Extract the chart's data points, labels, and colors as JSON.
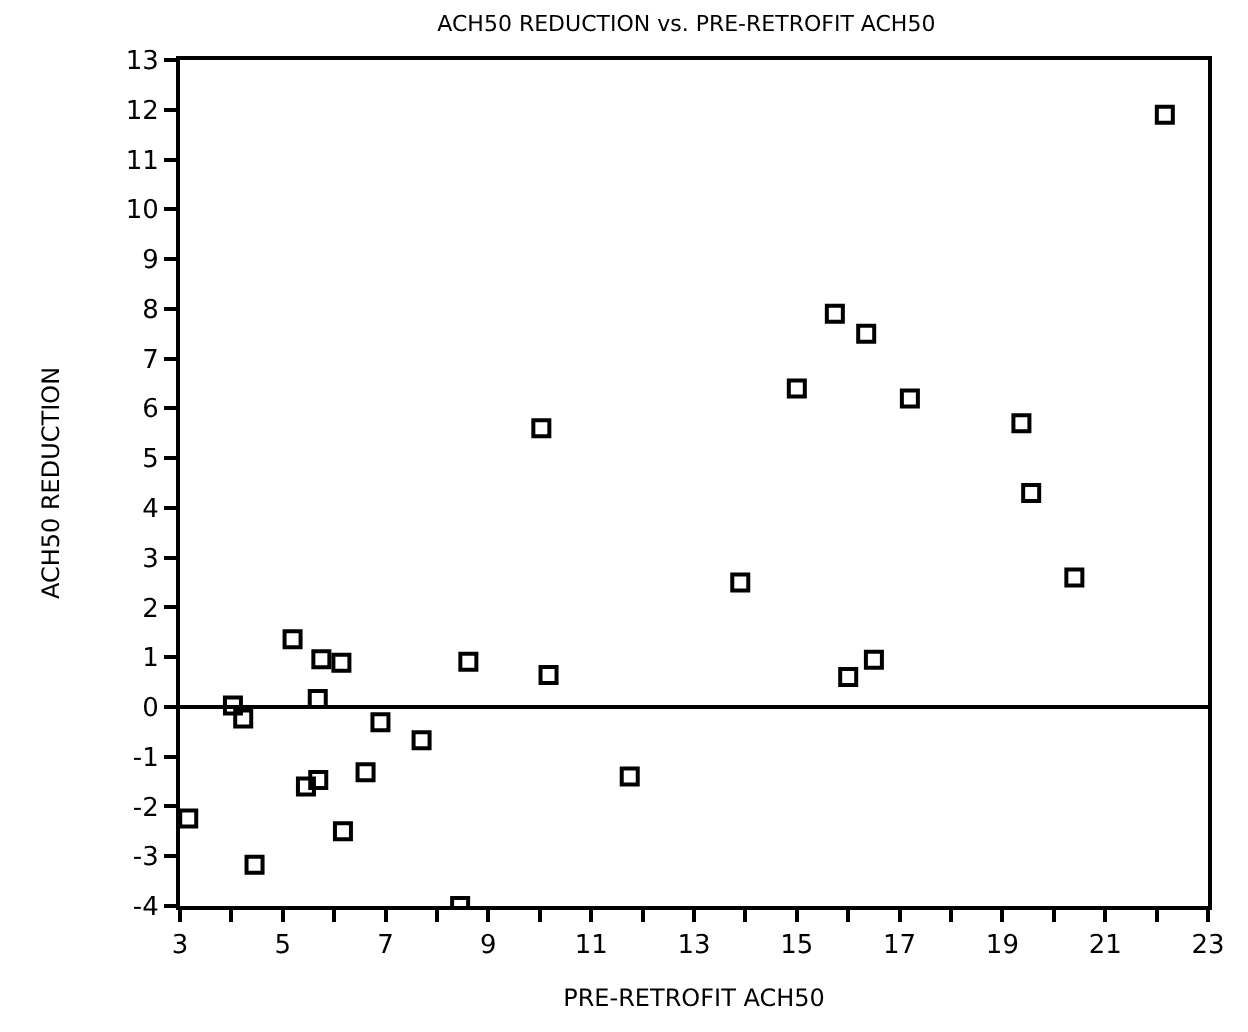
{
  "chart_data": {
    "type": "scatter",
    "title": "ACH50 REDUCTION vs. PRE-RETROFIT ACH50",
    "xlabel": "PRE-RETROFIT ACH50",
    "ylabel": "ACH50 REDUCTION",
    "x": [
      3.16,
      4.03,
      4.23,
      4.45,
      5.19,
      5.45,
      5.69,
      5.68,
      5.75,
      6.14,
      6.17,
      6.61,
      6.9,
      7.7,
      8.45,
      8.61,
      10.03,
      10.17,
      11.75,
      13.9,
      15.0,
      15.74,
      16.0,
      16.35,
      16.5,
      17.2,
      19.37,
      19.56,
      20.4,
      22.16
    ],
    "series": [
      {
        "color": "#000000",
        "values": [
          -2.24,
          0.03,
          -0.23,
          -3.17,
          1.36,
          -1.6,
          -1.47,
          0.16,
          0.96,
          0.89,
          -2.5,
          -1.31,
          -0.31,
          -0.67,
          -4.0,
          0.91,
          5.6,
          0.64,
          -1.4,
          2.5,
          6.4,
          7.9,
          0.6,
          7.5,
          0.95,
          6.2,
          5.7,
          4.3,
          2.6,
          11.9
        ]
      }
    ],
    "marker": "square",
    "xlim": [
      3,
      23
    ],
    "xticks": [
      3,
      {
        "value": 4,
        "label": null
      },
      5,
      {
        "value": 6,
        "label": null
      },
      7,
      {
        "value": 8,
        "label": null
      },
      9,
      {
        "value": 10,
        "label": null
      },
      11,
      {
        "value": 12,
        "label": null
      },
      13,
      {
        "value": 14,
        "label": null
      },
      15,
      {
        "value": 16,
        "label": null
      },
      17,
      {
        "value": 18,
        "label": null
      },
      19,
      {
        "value": 20,
        "label": null
      },
      21,
      {
        "value": 22,
        "label": null
      },
      23
    ],
    "ylim": [
      -4,
      13
    ],
    "yticks": [
      -4,
      -3,
      -2,
      -1,
      0,
      1,
      2,
      3,
      4,
      5,
      6,
      7,
      8,
      9,
      10,
      11,
      12,
      13
    ],
    "ref_lines": [
      {
        "axis": "y",
        "value": 0,
        "color": "#000000"
      }
    ]
  }
}
